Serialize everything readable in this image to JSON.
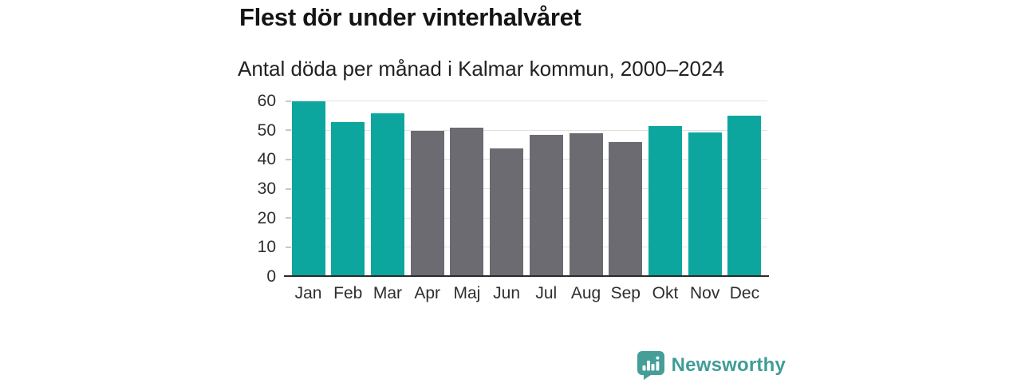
{
  "header": {
    "title": "Flest dör under vinterhalvåret",
    "subtitle": "Antal döda per månad i Kalmar kommun, 2000–2024"
  },
  "chart_data": {
    "type": "bar",
    "title": "Flest dör under vinterhalvåret",
    "subtitle": "Antal döda per månad i Kalmar kommun, 2000–2024",
    "categories": [
      "Jan",
      "Feb",
      "Mar",
      "Apr",
      "Maj",
      "Jun",
      "Jul",
      "Aug",
      "Sep",
      "Okt",
      "Nov",
      "Dec"
    ],
    "values": [
      60,
      53,
      56,
      50,
      51,
      44,
      48.5,
      49,
      46,
      51.5,
      49.5,
      55
    ],
    "color_keys": [
      "winter",
      "winter",
      "winter",
      "summer",
      "summer",
      "summer",
      "summer",
      "summer",
      "summer",
      "winter",
      "winter",
      "winter"
    ],
    "colors": {
      "winter": "#0ca69e",
      "summer": "#6d6b72"
    },
    "xlabel": "",
    "ylabel": "",
    "ylim": [
      0,
      60
    ],
    "yticks": [
      0,
      10,
      20,
      30,
      40,
      50,
      60
    ],
    "grid": "horizontal",
    "legend": "none"
  },
  "branding": {
    "logo_text": "Newsworthy",
    "logo_color": "#3f9d96",
    "logo_icon": "newsworthy-bubble-chart-icon"
  }
}
